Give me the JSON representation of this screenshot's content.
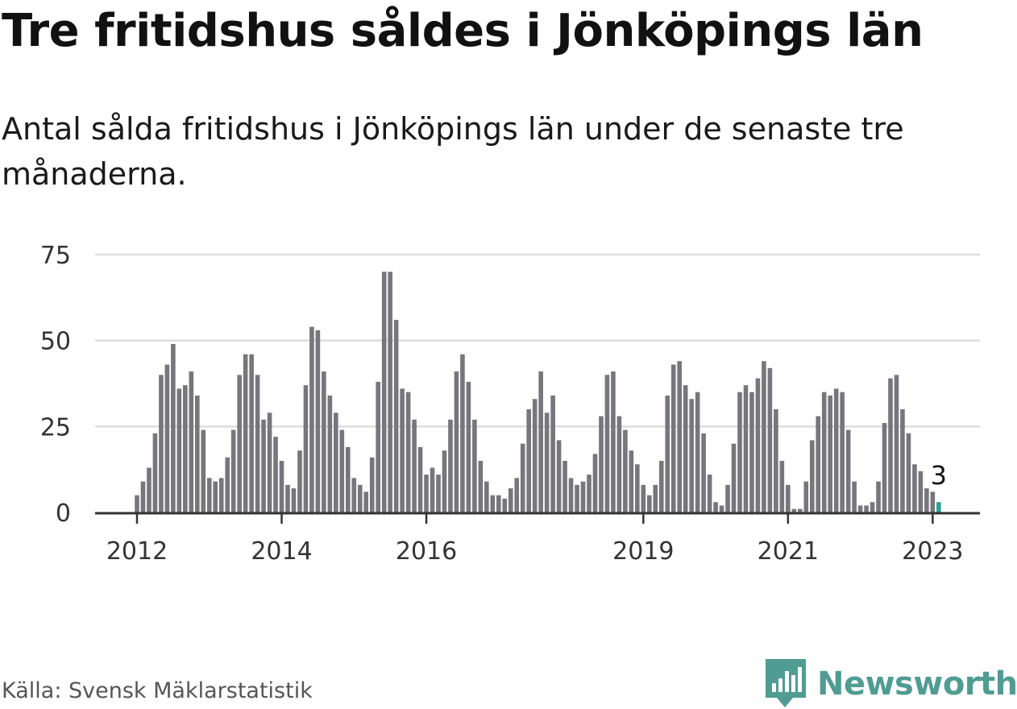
{
  "title": "Tre fritidshus såldes i Jönköpings län",
  "subtitle": "Antal sålda fritidshus i Jönköpings län under de senaste tre månaderna.",
  "source": "Källa: Svensk Mäklarstatistik",
  "brand": {
    "name": "Newsworthy",
    "logo_icon": "bar-chart-speech-bubble-icon"
  },
  "colors": {
    "bar": "#77767b",
    "highlight": "#2f9e94",
    "brand": "#4f9c93",
    "grid": "#dddddd",
    "axis": "#333333"
  },
  "chart_data": {
    "type": "bar",
    "x_start": "2012-01",
    "x_unit": "month",
    "values": [
      5,
      9,
      13,
      23,
      40,
      43,
      49,
      36,
      37,
      41,
      34,
      24,
      10,
      9,
      10,
      16,
      24,
      40,
      46,
      46,
      40,
      27,
      29,
      22,
      15,
      8,
      7,
      18,
      37,
      54,
      53,
      41,
      34,
      29,
      24,
      19,
      10,
      8,
      6,
      16,
      38,
      70,
      70,
      56,
      36,
      35,
      27,
      19,
      11,
      13,
      11,
      18,
      27,
      41,
      46,
      38,
      27,
      15,
      9,
      5,
      5,
      4,
      7,
      10,
      20,
      30,
      33,
      41,
      29,
      34,
      21,
      15,
      10,
      8,
      9,
      11,
      17,
      28,
      40,
      41,
      28,
      24,
      18,
      14,
      8,
      5,
      8,
      15,
      34,
      43,
      44,
      37,
      33,
      35,
      23,
      11,
      3,
      2,
      8,
      20,
      35,
      37,
      35,
      39,
      44,
      42,
      30,
      15,
      8,
      1,
      1,
      9,
      21,
      28,
      35,
      34,
      36,
      35,
      24,
      9,
      2,
      2,
      3,
      9,
      26,
      39,
      40,
      30,
      23,
      14,
      12,
      7,
      6,
      3
    ],
    "highlight_index": 133,
    "highlight_label": "3",
    "ylim": [
      0,
      75
    ],
    "y_ticks": [
      "0",
      "25",
      "50",
      "75"
    ],
    "x_ticks": [
      {
        "label": "2012",
        "index": 0
      },
      {
        "label": "2014",
        "index": 24
      },
      {
        "label": "2016",
        "index": 48
      },
      {
        "label": "2019",
        "index": 84
      },
      {
        "label": "2021",
        "index": 108
      },
      {
        "label": "2023",
        "index": 132
      }
    ],
    "grid": true,
    "xlabel": "",
    "ylabel": ""
  }
}
